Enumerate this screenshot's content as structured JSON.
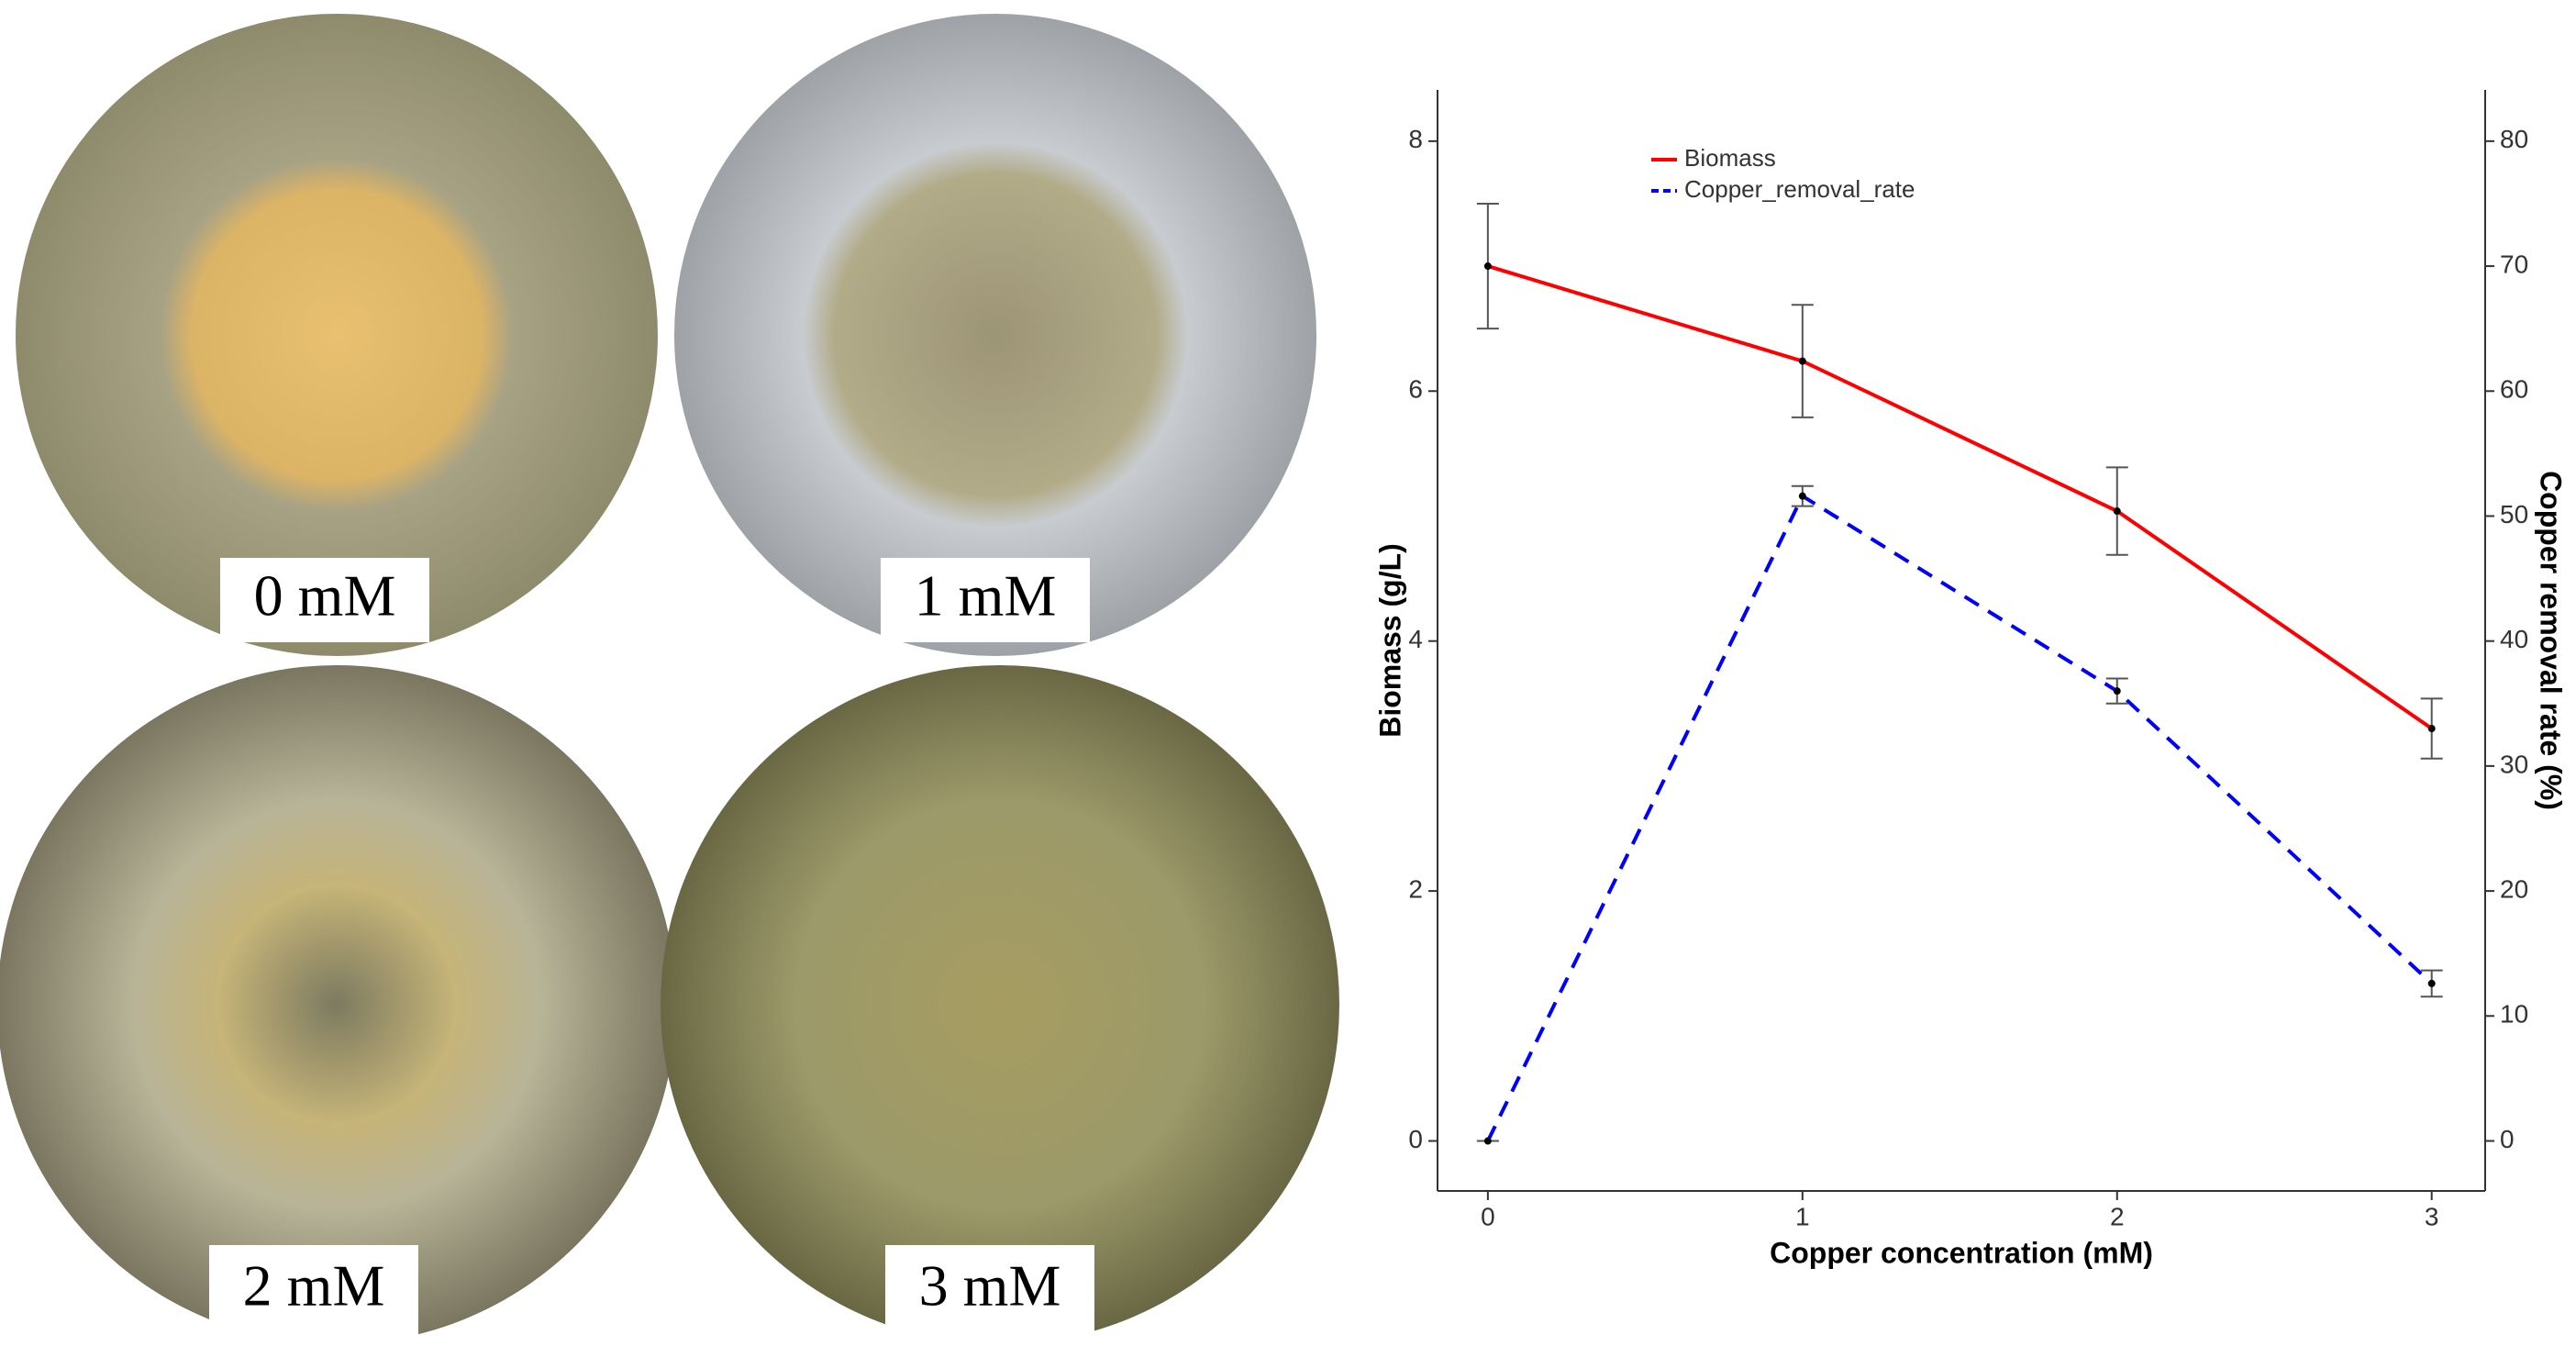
{
  "panels": [
    {
      "label": "0 mM"
    },
    {
      "label": "1 mM"
    },
    {
      "label": "2 mM"
    },
    {
      "label": "3 mM"
    }
  ],
  "chart_data": {
    "type": "line",
    "x_label": "Copper concentration (mM)",
    "y_label": "Biomass (g/L)",
    "y2_label": "Copper removal rate (%)",
    "x": [
      0,
      1,
      2,
      3
    ],
    "xlim": [
      -0.16,
      3.17
    ],
    "xticks": [
      0,
      1,
      2,
      3
    ],
    "ylim": [
      -0.4,
      8.41
    ],
    "yticks": [
      0,
      2,
      4,
      6,
      8
    ],
    "y2lim": [
      -4.0,
      84.1
    ],
    "y2ticks": [
      0,
      10,
      20,
      30,
      40,
      50,
      60,
      70,
      80
    ],
    "series": [
      {
        "name": "Biomass",
        "color": "#ff0000",
        "dash": false,
        "values": [
          7.0,
          6.24,
          5.04,
          3.3
        ],
        "errors": [
          0.5,
          0.45,
          0.35,
          0.24
        ]
      },
      {
        "name": "Copper_removal_rate",
        "color": "#0000ff",
        "dash": true,
        "axis": "y2",
        "values": [
          0,
          51.6,
          36,
          12.6
        ],
        "errors": [
          0,
          0.8,
          1,
          1.05
        ]
      }
    ]
  }
}
